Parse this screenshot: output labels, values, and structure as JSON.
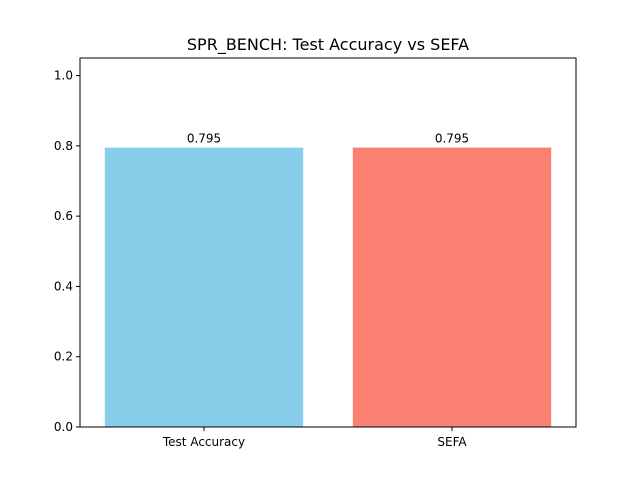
{
  "chart_data": {
    "type": "bar",
    "title": "SPR_BENCH: Test Accuracy vs SEFA",
    "xlabel": "",
    "ylabel": "",
    "categories": [
      "Test Accuracy",
      "SEFA"
    ],
    "values": [
      0.795,
      0.795
    ],
    "data_labels": [
      "0.795",
      "0.795"
    ],
    "colors": [
      "#87ceeb",
      "#fa8072"
    ],
    "ylim": [
      0,
      1.05
    ],
    "yticks": [
      0.0,
      0.2,
      0.4,
      0.6,
      0.8,
      1.0
    ],
    "ytick_labels": [
      "0.0",
      "0.2",
      "0.4",
      "0.6",
      "0.8",
      "1.0"
    ],
    "grid": false,
    "legend": "none"
  }
}
